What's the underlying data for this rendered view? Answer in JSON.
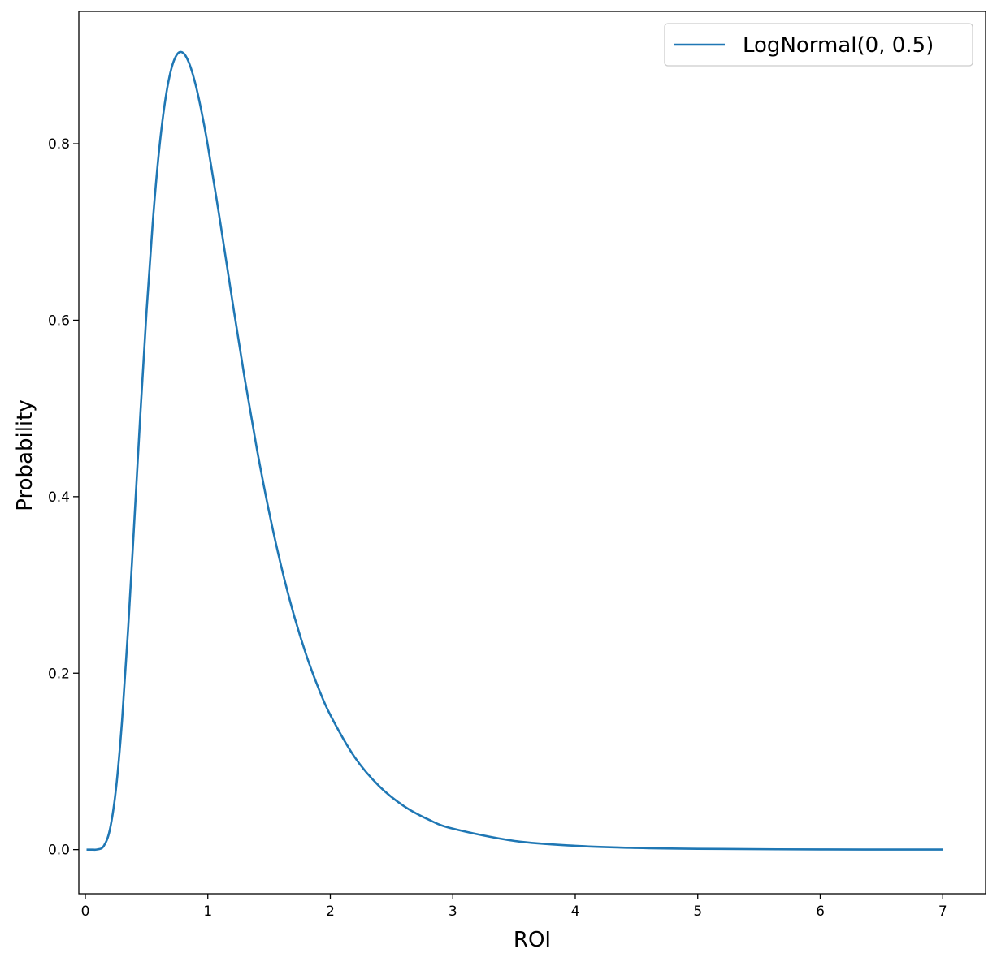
{
  "chart_data": {
    "type": "line",
    "title": "",
    "xlabel": "ROI",
    "ylabel": "Probability",
    "xlim": [
      -0.053,
      7.35
    ],
    "ylim": [
      -0.05,
      0.95
    ],
    "xticks": [
      0,
      1,
      2,
      3,
      4,
      5,
      6,
      7
    ],
    "xtick_labels": [
      "0",
      "1",
      "2",
      "3",
      "4",
      "5",
      "6",
      "7"
    ],
    "yticks": [
      0.0,
      0.2,
      0.4,
      0.6,
      0.8
    ],
    "ytick_labels": [
      "0.0",
      "0.2",
      "0.4",
      "0.6",
      "0.8"
    ],
    "grid": false,
    "legend_position": "top-right",
    "series": [
      {
        "name": "LogNormal(0, 0.5)",
        "color": "#1f77b4",
        "x": [
          0.01,
          0.05,
          0.1,
          0.15,
          0.2,
          0.25,
          0.3,
          0.35,
          0.4,
          0.45,
          0.5,
          0.55,
          0.6,
          0.65,
          0.7,
          0.75,
          0.8,
          0.85,
          0.9,
          0.95,
          1.0,
          1.1,
          1.2,
          1.3,
          1.4,
          1.5,
          1.6,
          1.7,
          1.8,
          1.9,
          2.0,
          2.2,
          2.4,
          2.6,
          2.8,
          3.0,
          3.5,
          4.0,
          4.5,
          5.0,
          6.0,
          7.0
        ],
        "y": [
          0,
          0,
          0.0002,
          0.004,
          0.0225,
          0.0684,
          0.1465,
          0.2515,
          0.372,
          0.4954,
          0.6104,
          0.7098,
          0.7893,
          0.8469,
          0.8838,
          0.9015,
          0.9028,
          0.8904,
          0.867,
          0.8355,
          0.7979,
          0.7123,
          0.6222,
          0.5348,
          0.4545,
          0.3829,
          0.3206,
          0.2673,
          0.2221,
          0.1842,
          0.1526,
          0.1046,
          0.0718,
          0.0494,
          0.0342,
          0.0238,
          0.0099,
          0.0043,
          0.0019,
          0.0009,
          0.0002,
          0.0001
        ]
      }
    ]
  }
}
